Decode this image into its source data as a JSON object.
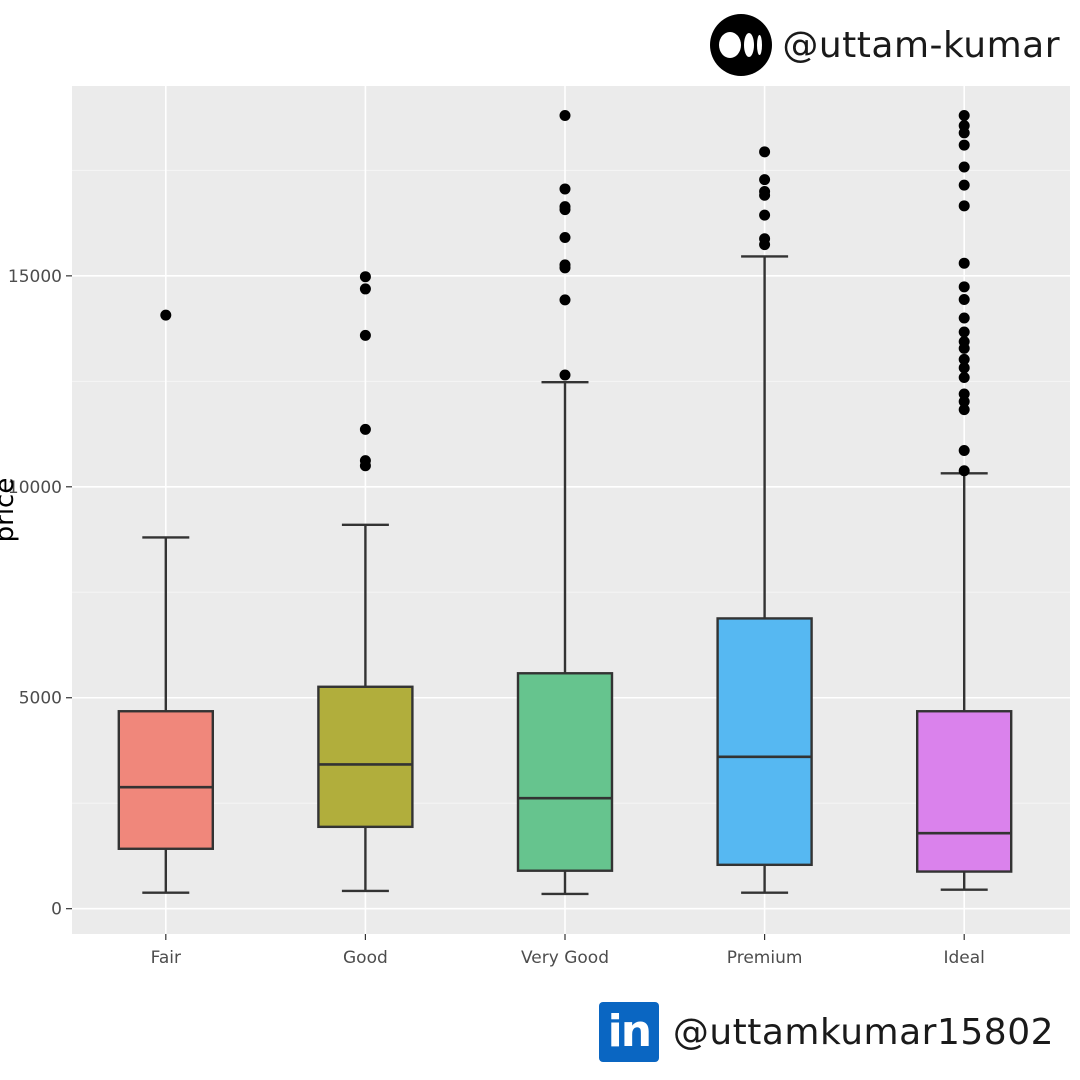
{
  "watermarks": {
    "medium_icon": "medium-logo-icon",
    "medium_handle": "@uttam-kumar",
    "linkedin_icon": "linkedin-logo-icon",
    "linkedin_logo_text": "in",
    "linkedin_handle": "@uttamkumar15802"
  },
  "chart_data": {
    "type": "boxplot",
    "title": "",
    "xlabel": "",
    "ylabel": "price",
    "ylim": [
      -600,
      19500
    ],
    "yticks": [
      0,
      5000,
      10000,
      15000
    ],
    "grid": true,
    "legend": "none",
    "categories": [
      "Fair",
      "Good",
      "Very Good",
      "Premium",
      "Ideal"
    ],
    "boxes": [
      {
        "name": "Fair",
        "color": "#F0877B",
        "whisker_low": 380,
        "q1": 1420,
        "median": 2880,
        "q3": 4680,
        "whisker_high": 8800,
        "outliers": [
          14070
        ]
      },
      {
        "name": "Good",
        "color": "#B1AE3C",
        "whisker_low": 420,
        "q1": 1940,
        "median": 3420,
        "q3": 5260,
        "whisker_high": 9100,
        "outliers": [
          10500,
          10620,
          11360,
          13590,
          14690,
          14980
        ]
      },
      {
        "name": "Very Good",
        "color": "#66C48E",
        "whisker_low": 350,
        "q1": 900,
        "median": 2620,
        "q3": 5580,
        "whisker_high": 12480,
        "outliers": [
          12650,
          14430,
          15190,
          15260,
          15910,
          16570,
          16640,
          17060,
          18800
        ]
      },
      {
        "name": "Premium",
        "color": "#56B8F2",
        "whisker_low": 380,
        "q1": 1040,
        "median": 3600,
        "q3": 6880,
        "whisker_high": 15460,
        "outliers": [
          15740,
          15880,
          16440,
          16910,
          17000,
          17280,
          17940
        ]
      },
      {
        "name": "Ideal",
        "color": "#DA82EC",
        "whisker_low": 450,
        "q1": 880,
        "median": 1790,
        "q3": 4680,
        "whisker_high": 10320,
        "outliers": [
          10380,
          10860,
          11830,
          12020,
          12200,
          12590,
          12820,
          13020,
          13280,
          13440,
          13670,
          14000,
          14440,
          14740,
          15300,
          16660,
          17150,
          17580,
          18100,
          18390,
          18560,
          18800
        ]
      }
    ]
  }
}
